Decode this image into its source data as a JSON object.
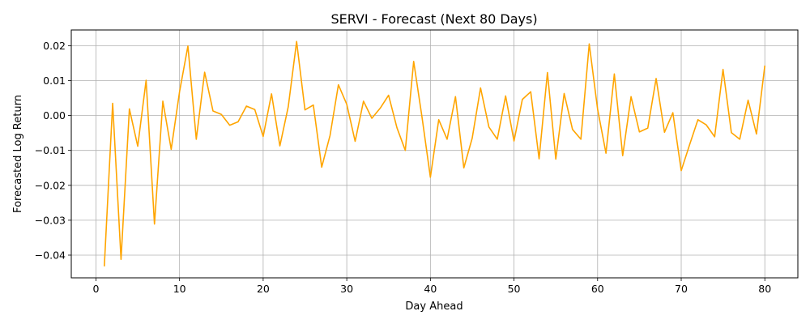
{
  "chart_data": {
    "type": "line",
    "title": "SERVI - Forecast (Next 80 Days)",
    "xlabel": "Day Ahead",
    "ylabel": "Forecasted Log Return",
    "xlim": [
      -2.95,
      83.95
    ],
    "ylim": [
      -0.0465,
      0.0245
    ],
    "xticks": [
      0,
      10,
      20,
      30,
      40,
      50,
      60,
      70,
      80
    ],
    "xtick_labels": [
      "0",
      "10",
      "20",
      "30",
      "40",
      "50",
      "60",
      "70",
      "80"
    ],
    "yticks": [
      -0.04,
      -0.03,
      -0.02,
      -0.01,
      0.0,
      0.01,
      0.02
    ],
    "ytick_labels": [
      "−0.04",
      "−0.03",
      "−0.02",
      "−0.01",
      "0.00",
      "0.01",
      "0.02"
    ],
    "grid": true,
    "line_color": "#FFA500",
    "series": [
      {
        "x": [
          1,
          2,
          3,
          4,
          5,
          6,
          7,
          8,
          9,
          10,
          11,
          12,
          13,
          14,
          15,
          16,
          17,
          18,
          19,
          20,
          21,
          22,
          23,
          24,
          25,
          26,
          27,
          28,
          29,
          30,
          31,
          32,
          33,
          34,
          35,
          36,
          37,
          38,
          39,
          40,
          41,
          42,
          43,
          44,
          45,
          46,
          47,
          48,
          49,
          50,
          51,
          52,
          53,
          54,
          55,
          56,
          57,
          58,
          59,
          60,
          61,
          62,
          63,
          64,
          65,
          66,
          67,
          68,
          69,
          70,
          71,
          72,
          73,
          74,
          75,
          76,
          77,
          78,
          79,
          80
        ],
        "values": [
          -0.0432,
          0.0035,
          -0.0412,
          0.0019,
          -0.0088,
          0.0101,
          -0.0311,
          0.0041,
          -0.0097,
          0.0068,
          0.0199,
          -0.0068,
          0.0124,
          0.0013,
          0.0003,
          -0.0028,
          -0.0018,
          0.0027,
          0.0017,
          -0.006,
          0.0062,
          -0.0087,
          0.0025,
          0.0212,
          0.0016,
          0.003,
          -0.0148,
          -0.0057,
          0.0088,
          0.0032,
          -0.0074,
          0.0041,
          -0.0008,
          0.0021,
          0.0058,
          -0.0035,
          -0.01,
          0.0155,
          -0.0005,
          -0.0177,
          -0.0012,
          -0.0068,
          0.0054,
          -0.015,
          -0.0065,
          0.0079,
          -0.0033,
          -0.0068,
          0.0056,
          -0.0073,
          0.0046,
          0.0068,
          -0.0124,
          0.0123,
          -0.0125,
          0.0063,
          -0.004,
          -0.0068,
          0.0205,
          0.0018,
          -0.0108,
          0.0119,
          -0.0115,
          0.0054,
          -0.0047,
          -0.0036,
          0.0106,
          -0.0048,
          0.0008,
          -0.0158,
          -0.0084,
          -0.0012,
          -0.0027,
          -0.0061,
          0.0132,
          -0.0049,
          -0.0068,
          0.0044,
          -0.0053,
          0.0143
        ]
      }
    ]
  }
}
